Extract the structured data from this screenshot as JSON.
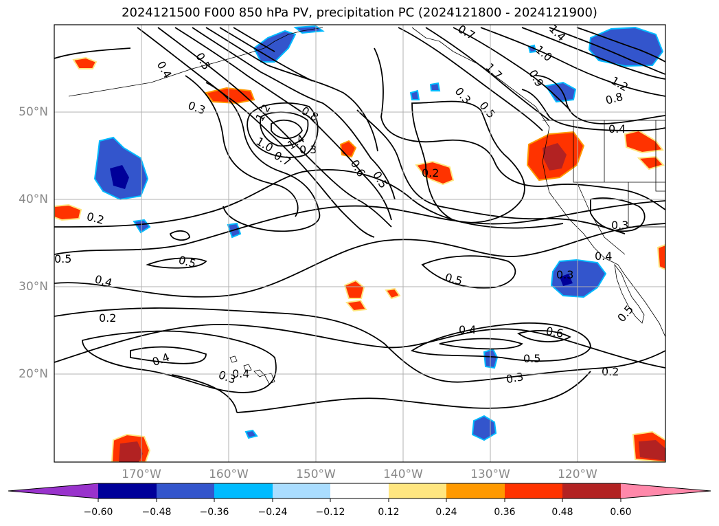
{
  "title": "2024121500 F000 850 hPa PV, precipitation PC (2024121800 - 2024121900)",
  "map": {
    "lat_labels": [
      "50°N",
      "40°N",
      "30°N",
      "20°N"
    ],
    "lon_labels": [
      "170°W",
      "160°W",
      "150°W",
      "140°W",
      "130°W",
      "120°W"
    ],
    "contour_labels": [
      "0.4",
      "0.5",
      "0.3",
      "1.2",
      "0.8",
      "1.0",
      "1.4",
      "0.7",
      "0.6",
      "0.5",
      "0.2",
      "0.7",
      "1.4",
      "1.0",
      "1.7",
      "0.3",
      "0.5",
      "0.9",
      "1.2",
      "0.8",
      "0.4",
      "0.2",
      "0.3",
      "0.5",
      "0.5",
      "0.4",
      "0.3",
      "0.4",
      "0.2",
      "0.5",
      "0.5",
      "0.4",
      "0.4",
      "0.3",
      "0.6",
      "0.5",
      "0.3",
      "0.2",
      "0.4",
      "0.3"
    ],
    "colors": {
      "land_border": "#000000",
      "grid": "#b0b0b0",
      "contour": "#000000"
    }
  },
  "colorbar": {
    "tick_labels": [
      "−0.60",
      "−0.48",
      "−0.36",
      "−0.24",
      "−0.12",
      "0.12",
      "0.24",
      "0.36",
      "0.48",
      "0.60"
    ],
    "colors": [
      "#9933cc",
      "#000099",
      "#3355cc",
      "#00bbff",
      "#aaddff",
      "#ffffff",
      "#ffe680",
      "#ff9900",
      "#ff3300",
      "#b22222",
      "#ff88aa"
    ]
  }
}
